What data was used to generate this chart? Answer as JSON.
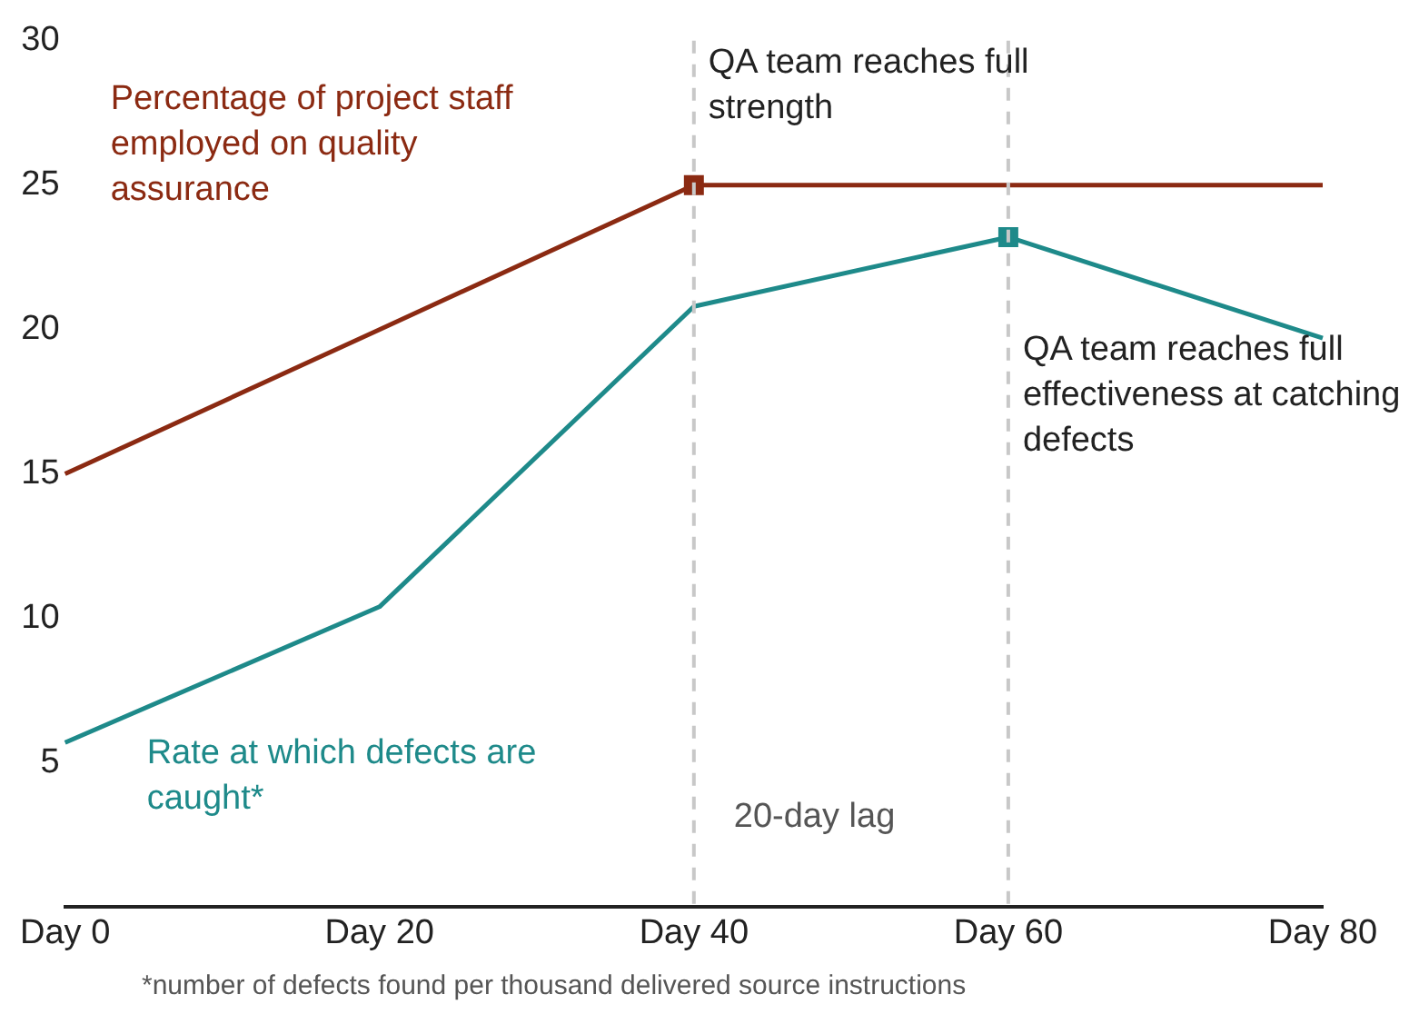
{
  "chart_data": {
    "type": "line",
    "categories": [
      "Day 0",
      "Day 20",
      "Day 40",
      "Day 60",
      "Day 80"
    ],
    "series": [
      {
        "name": "Percentage of project staff employed on quality assurance",
        "color": "#8b2a12",
        "values": [
          15,
          20,
          25,
          25,
          25
        ]
      },
      {
        "name": "Rate at which defects are caught*",
        "color": "#1e8a8a",
        "values": [
          5.7,
          10.4,
          20.8,
          23.2,
          19.7
        ]
      }
    ],
    "ylim": [
      0,
      30
    ],
    "yticks": [
      5,
      10,
      15,
      20,
      25,
      30
    ],
    "grid": false,
    "legend": false,
    "ref_lines": [
      {
        "axis": "x",
        "value": "Day 40",
        "color": "#c8c8c8",
        "line_style": "dashed"
      },
      {
        "axis": "x",
        "value": "Day 60",
        "color": "#c8c8c8",
        "line_style": "dashed"
      }
    ],
    "annotations": [
      {
        "text": "QA team reaches full strength",
        "x": "Day 40",
        "y": 25
      },
      {
        "text": "QA team reaches full effectiveness at catching defects",
        "x": "Day 60",
        "y": 23.2
      },
      "20-day lag",
      "*number of defects found per thousand delivered source instructions"
    ]
  }
}
